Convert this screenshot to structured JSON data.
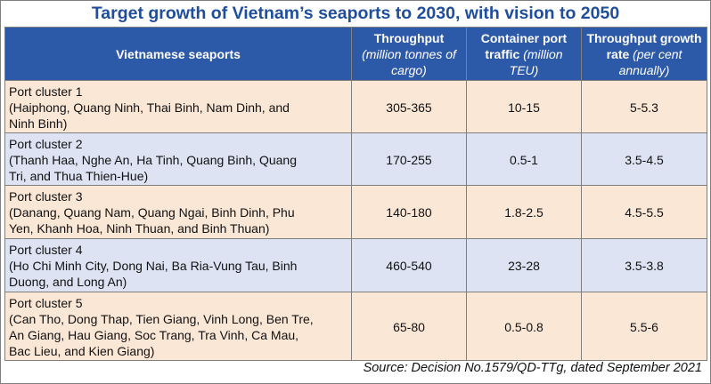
{
  "title": "Target growth of Vietnam’s seaports to 2030, with vision to 2050",
  "columns": [
    {
      "label": "Vietnamese seaports",
      "sub": ""
    },
    {
      "label": "Throughput",
      "sub": "(million tonnes of cargo)"
    },
    {
      "label": "Container port traffic",
      "sub": "(million TEU)"
    },
    {
      "label": "Throughput growth rate",
      "sub": "(per cent annually)"
    }
  ],
  "rows": [
    {
      "cluster": "Port cluster 1",
      "ports": [
        "(Haiphong, Quang Ninh, Thai Binh, Nam Dinh, and",
        "Ninh Binh)"
      ],
      "throughput": "305-365",
      "container": "10-15",
      "growth": "5-5.3"
    },
    {
      "cluster": "Port cluster 2",
      "ports": [
        "(Thanh Haa, Nghe An, Ha Tinh, Quang Binh, Quang",
        "Tri, and Thua Thien-Hue)"
      ],
      "throughput": "170-255",
      "container": "0.5-1",
      "growth": "3.5-4.5"
    },
    {
      "cluster": "Port cluster 3",
      "ports": [
        "(Danang, Quang Nam, Quang Ngai, Binh Dinh, Phu",
        "Yen, Khanh Hoa, Ninh Thuan, and Binh Thuan)"
      ],
      "throughput": "140-180",
      "container": "1.8-2.5",
      "growth": "4.5-5.5"
    },
    {
      "cluster": "Port cluster 4",
      "ports": [
        "(Ho Chi Minh City, Dong Nai, Ba Ria-Vung Tau, Binh",
        "Duong, and Long An)"
      ],
      "throughput": "460-540",
      "container": "23-28",
      "growth": "3.5-3.8"
    },
    {
      "cluster": "Port cluster 5",
      "ports": [
        "(Can Tho, Dong Thap, Tien Giang, Vinh Long, Ben Tre,",
        "An Giang, Hau Giang, Soc Trang, Tra Vinh, Ca Mau,",
        "Bac Lieu, and Kien Giang)"
      ],
      "throughput": "65-80",
      "container": "0.5-0.8",
      "growth": "5.5-6"
    }
  ],
  "source": "Source: Decision No.1579/QD-TTg, dated September 2021",
  "colors": {
    "title": "#1f4e9c",
    "header_bg": "#2d5aa8",
    "row_peach": "#fbe7d6",
    "row_blue": "#dde3f2",
    "border": "#7f7f7f"
  }
}
